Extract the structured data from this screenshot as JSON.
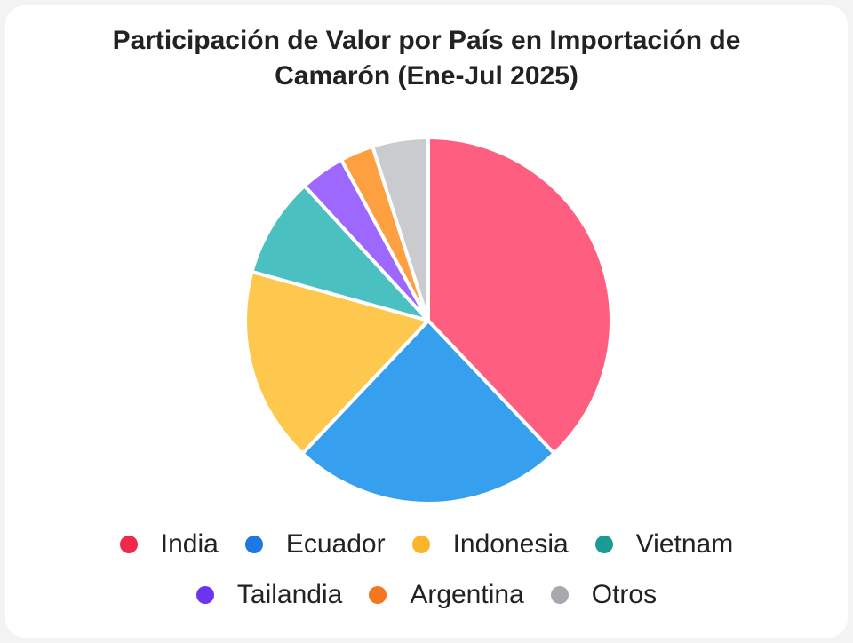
{
  "chart_data": {
    "type": "pie",
    "title_lines": [
      "Participación de Valor por País en Importación de",
      "Camarón (Ene-Jul 2025)"
    ],
    "legend_position": "bottom",
    "slices": [
      {
        "label": "India",
        "value": 38.5,
        "color": "#fe5f80",
        "legend_color": "#f0284a"
      },
      {
        "label": "Ecuador",
        "value": 24.5,
        "color": "#37a0ee",
        "legend_color": "#1e78e1"
      },
      {
        "label": "Indonesia",
        "value": 17.5,
        "color": "#fec84e",
        "legend_color": "#fbb52b"
      },
      {
        "label": "Vietnam",
        "value": 9.0,
        "color": "#4bc0c0",
        "legend_color": "#1a9c94"
      },
      {
        "label": "Tailandia",
        "value": 4.0,
        "color": "#9c68fe",
        "legend_color": "#6a35f0"
      },
      {
        "label": "Argentina",
        "value": 3.0,
        "color": "#fe9f40",
        "legend_color": "#f4771f"
      },
      {
        "label": "Otros",
        "value": 5.0,
        "color": "#c9cbcf",
        "legend_color": "#a6a8ad"
      }
    ]
  }
}
